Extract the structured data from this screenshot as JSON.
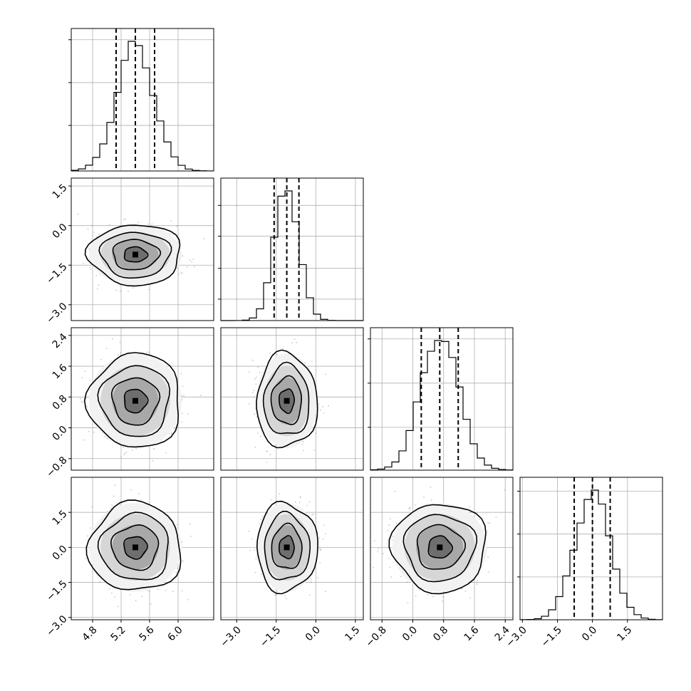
{
  "figure": {
    "type": "corner-plot",
    "ndim": 4,
    "colors": {
      "background": "#ffffff",
      "line": "#000000",
      "grid": "#b0b0b0",
      "scatter": "#9a9a9a"
    },
    "ticklabels": [
      [
        "4.8",
        "5.2",
        "5.6",
        "6.0"
      ],
      [
        "−3.0",
        "−1.5",
        "0.0",
        "1.5"
      ],
      [
        "−0.8",
        "0.0",
        "0.8",
        "1.6",
        "2.4"
      ],
      [
        "−3.0",
        "−1.5",
        "0.0",
        "1.5"
      ]
    ]
  },
  "chart_data": {
    "type": "corner",
    "title": "",
    "parameters": [
      {
        "index": 0,
        "range": [
          4.5,
          6.5
        ],
        "ticks": [
          4.8,
          5.2,
          5.6,
          6.0
        ],
        "mean": 5.4,
        "std": 0.26,
        "quantiles": [
          5.13,
          5.4,
          5.67
        ]
      },
      {
        "index": 1,
        "range": [
          -3.6,
          1.8
        ],
        "ticks": [
          -3.0,
          -1.5,
          0.0,
          1.5
        ],
        "mean": -1.1,
        "std": 0.46,
        "quantiles": [
          -1.58,
          -1.1,
          -0.64
        ]
      },
      {
        "index": 2,
        "range": [
          -1.1,
          2.6
        ],
        "ticks": [
          -0.8,
          0.0,
          0.8,
          1.6,
          2.4
        ],
        "mean": 0.7,
        "std": 0.49,
        "quantiles": [
          0.22,
          0.7,
          1.18
        ]
      },
      {
        "index": 3,
        "range": [
          -3.1,
          3.0
        ],
        "ticks": [
          -3.0,
          -1.5,
          0.0,
          1.5
        ],
        "mean": 0.0,
        "std": 0.76,
        "quantiles": [
          -0.78,
          0.0,
          0.76
        ]
      }
    ],
    "histogram_peak_ticks": [
      {
        "panel": 0,
        "yticks_fraction_of_peak": [
          0.34,
          0.66,
          0.98
        ]
      },
      {
        "panel": 1,
        "yticks_fraction_of_peak": [
          0.16,
          0.39,
          0.63,
          0.86
        ]
      },
      {
        "panel": 2,
        "yticks_fraction_of_peak": [
          0.32,
          0.65,
          0.98
        ]
      },
      {
        "panel": 3,
        "yticks_fraction_of_peak": [
          0.32,
          0.64,
          0.96
        ]
      }
    ],
    "contour_levels_sigma": [
      0.5,
      1.0,
      1.5,
      2.0
    ],
    "grid": true,
    "quantiles_shown": [
      0.16,
      0.5,
      0.84
    ]
  }
}
